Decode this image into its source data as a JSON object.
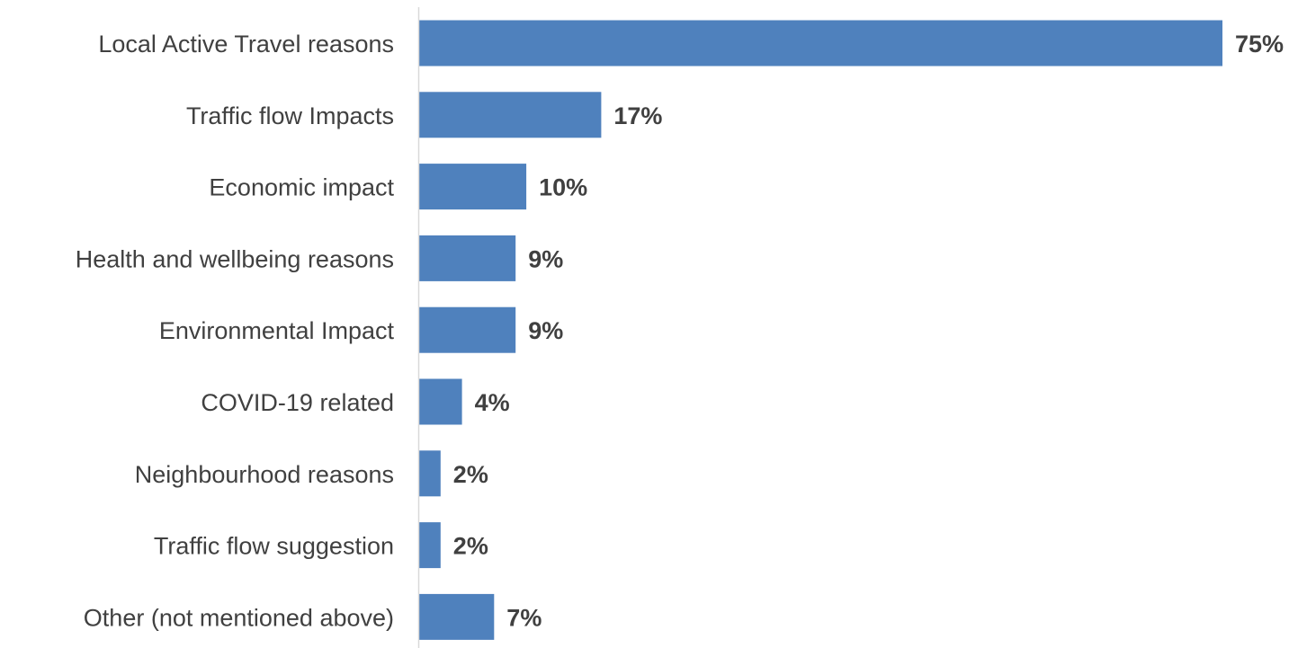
{
  "chart_data": {
    "type": "bar",
    "orientation": "horizontal",
    "categories": [
      "Local Active Travel reasons",
      "Traffic flow Impacts",
      "Economic impact ",
      "Health and wellbeing reasons ",
      "Environmental Impact",
      "COVID-19 related",
      "Neighbourhood reasons ",
      "Traffic flow suggestion",
      "Other (not mentioned above)"
    ],
    "values": [
      75,
      17,
      10,
      9,
      9,
      4,
      2,
      2,
      7
    ],
    "value_labels": [
      "75%",
      "17%",
      "10%",
      "9%",
      "9%",
      "4%",
      "2%",
      "2%",
      "7%"
    ],
    "title": "",
    "xlabel": "",
    "ylabel": "",
    "xlim": [
      0,
      75
    ],
    "grid": false,
    "legend": "none",
    "colors": {
      "bar": "#4F81BD",
      "axis": "#D9D9D9",
      "text": "#404040"
    }
  }
}
